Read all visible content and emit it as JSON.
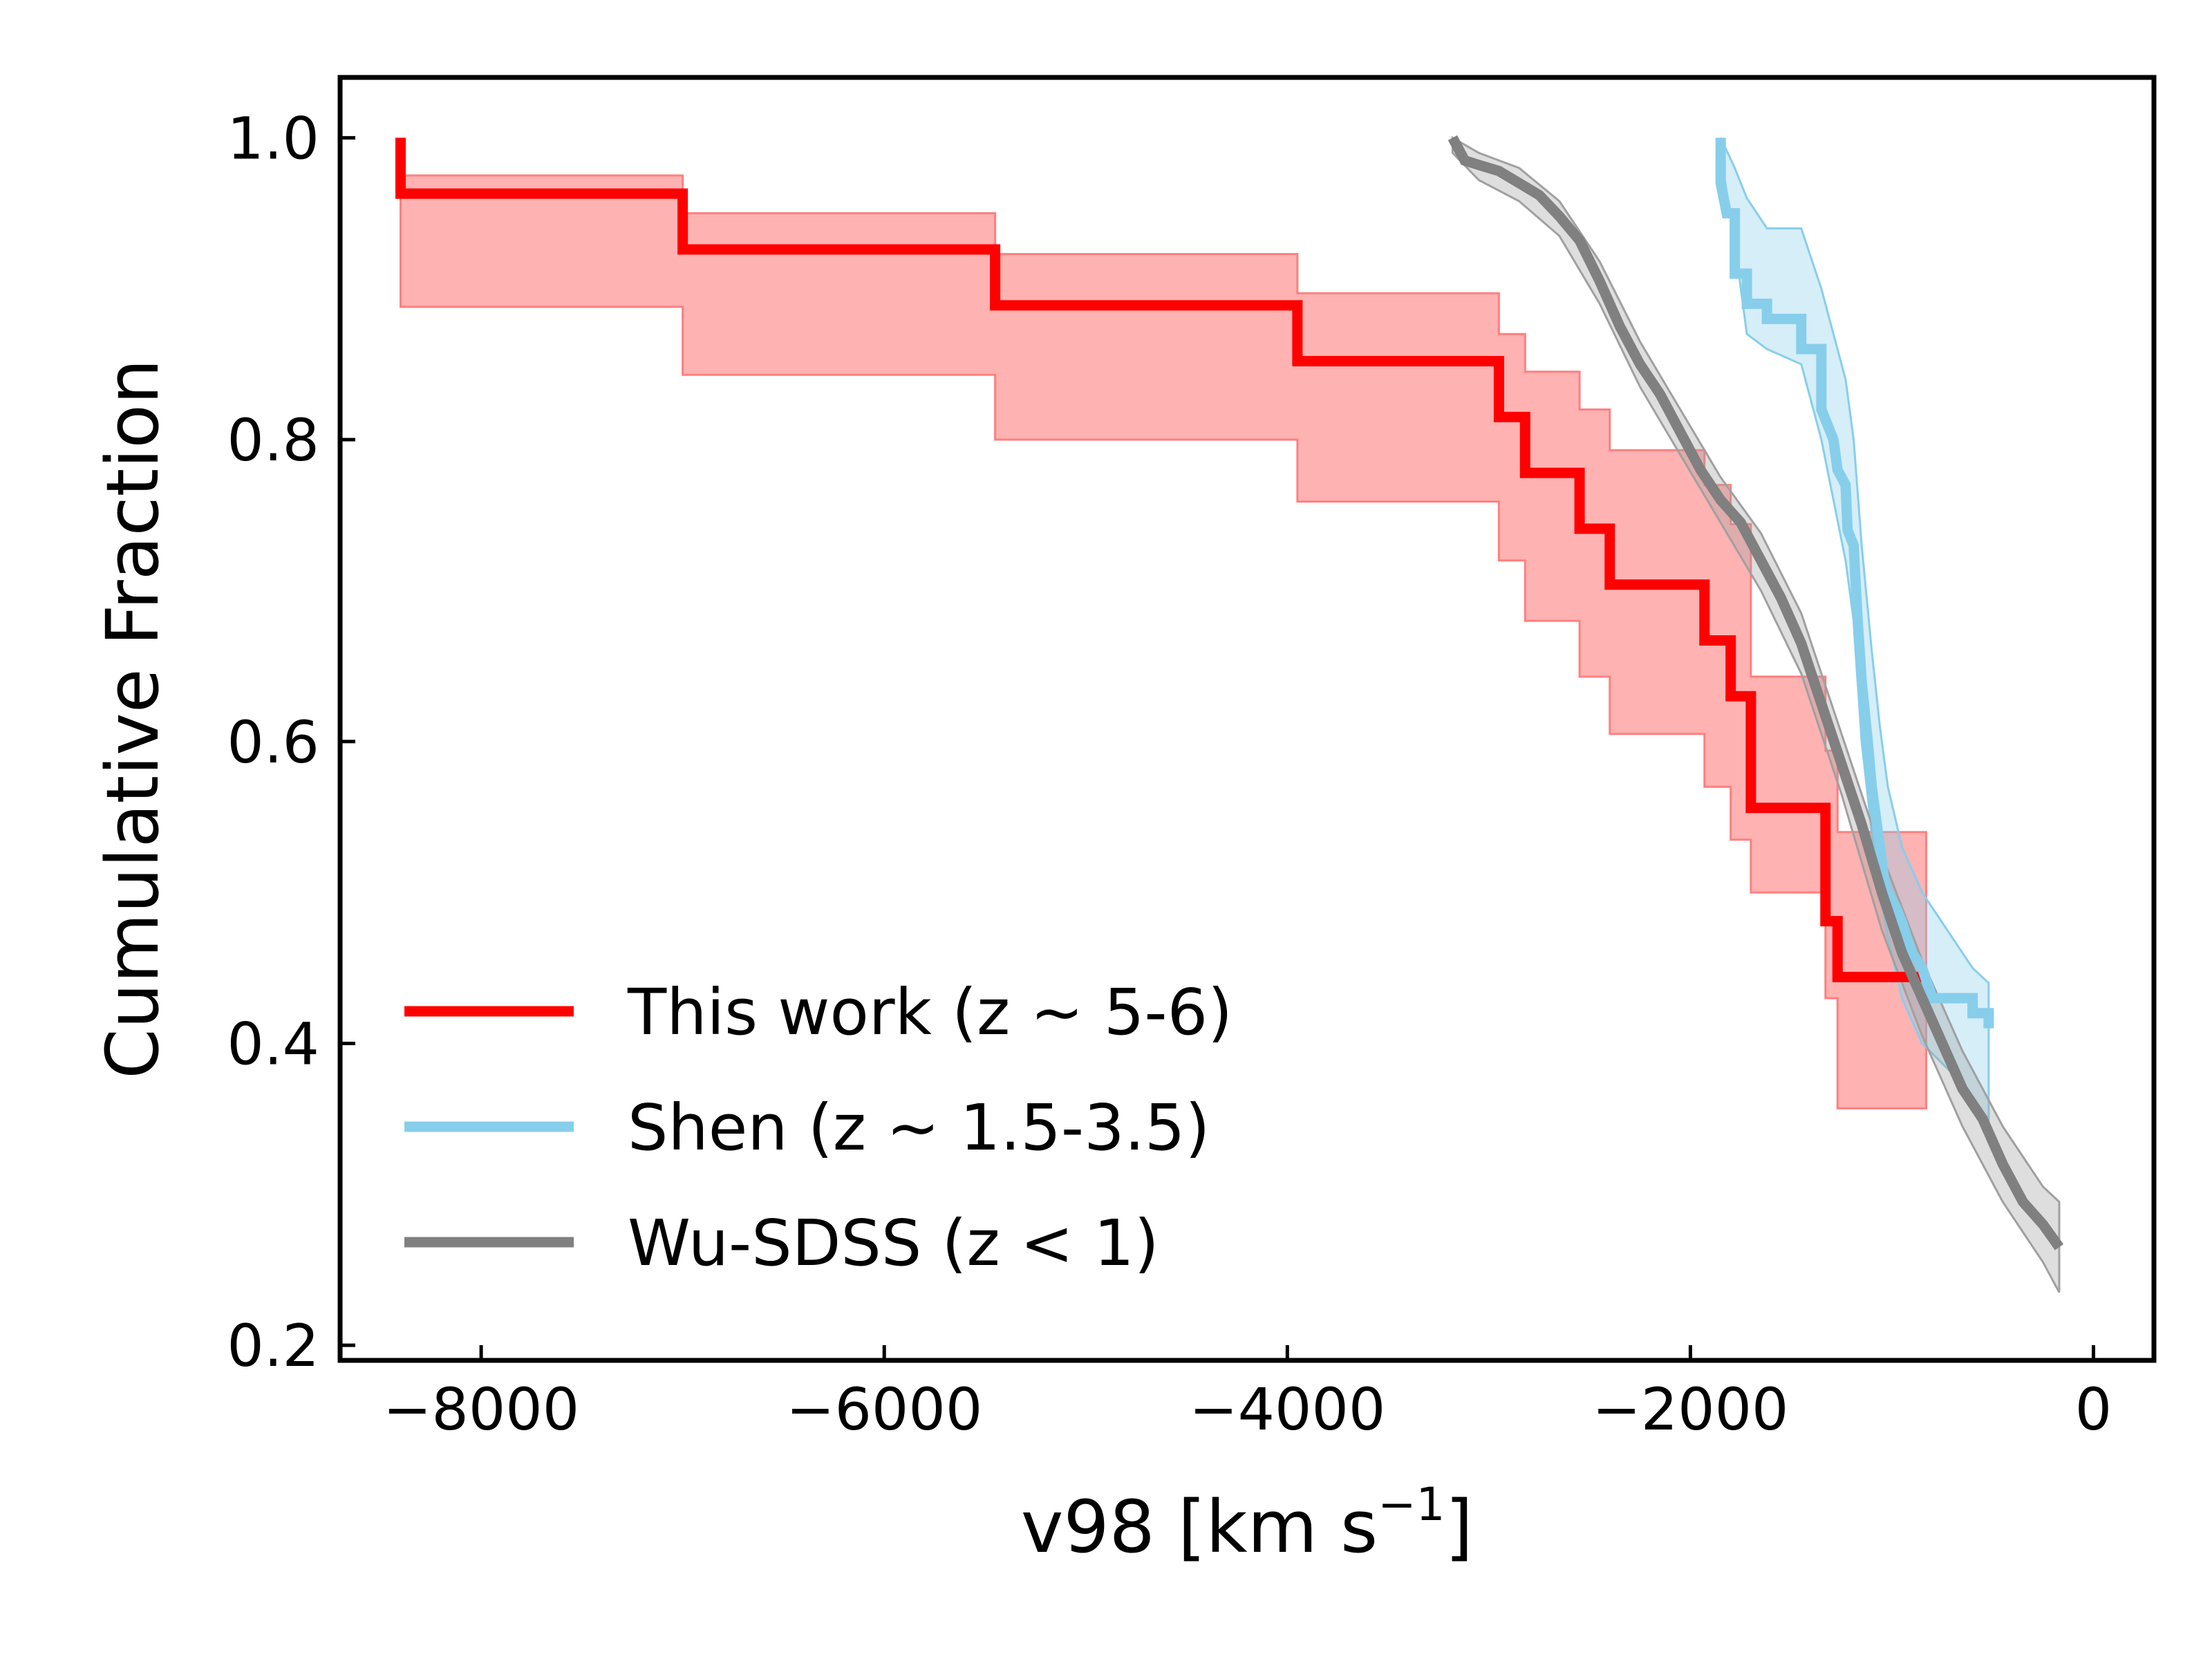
{
  "chart_data": {
    "type": "line",
    "xlabel": "v98 [km s",
    "xlabel_sup": "−1",
    "xlabel_end": "]",
    "ylabel": "Cumulative Fraction",
    "xlim": [
      -8700,
      300
    ],
    "ylim": [
      0.19,
      1.04
    ],
    "x_ticks": [
      -8000,
      -6000,
      -4000,
      -2000,
      0
    ],
    "x_tick_labels": [
      "−8000",
      "−6000",
      "−4000",
      "−2000",
      "0"
    ],
    "y_ticks": [
      0.2,
      0.4,
      0.6,
      0.8,
      1.0
    ],
    "y_tick_labels": [
      "0.2",
      "0.4",
      "0.6",
      "0.8",
      "1.0"
    ],
    "grid": false,
    "legend_position": "lower-left",
    "series": [
      {
        "name": "This work (z ∼ 5-6)",
        "color": "#ff0000",
        "band_color": "#ff7f7f",
        "x": [
          -8400,
          -8400,
          -7000,
          -7000,
          -5450,
          -5450,
          -3950,
          -3950,
          -2950,
          -2950,
          -2820,
          -2820,
          -2550,
          -2550,
          -2400,
          -2400,
          -1930,
          -1930,
          -1800,
          -1800,
          -1700,
          -1700,
          -1330,
          -1330,
          -1270,
          -1270,
          -830
        ],
        "y": [
          1.0,
          0.963,
          0.963,
          0.926,
          0.926,
          0.889,
          0.889,
          0.852,
          0.852,
          0.815,
          0.815,
          0.778,
          0.778,
          0.741,
          0.741,
          0.704,
          0.704,
          0.667,
          0.667,
          0.63,
          0.63,
          0.556,
          0.556,
          0.481,
          0.481,
          0.444,
          0.444
        ],
        "band_x": [
          -8400,
          -7000,
          -7000,
          -5450,
          -5450,
          -3950,
          -3950,
          -2950,
          -2950,
          -2820,
          -2820,
          -2550,
          -2550,
          -2400,
          -2400,
          -1930,
          -1930,
          -1800,
          -1800,
          -1700,
          -1700,
          -1330,
          -1330,
          -1270,
          -1270,
          -830
        ],
        "band_upper": [
          0.975,
          0.975,
          0.95,
          0.95,
          0.923,
          0.923,
          0.897,
          0.897,
          0.87,
          0.87,
          0.845,
          0.845,
          0.82,
          0.82,
          0.793,
          0.793,
          0.77,
          0.77,
          0.744,
          0.744,
          0.643,
          0.643,
          0.594,
          0.594,
          0.54,
          0.54
        ],
        "band_lower": [
          0.888,
          0.888,
          0.843,
          0.843,
          0.8,
          0.8,
          0.759,
          0.759,
          0.72,
          0.72,
          0.68,
          0.68,
          0.643,
          0.643,
          0.605,
          0.605,
          0.57,
          0.57,
          0.535,
          0.535,
          0.5,
          0.5,
          0.43,
          0.43,
          0.357,
          0.357
        ]
      },
      {
        "name": "Shen (z ∼ 1.5-3.5)",
        "color": "#87ceeb",
        "band_color": "#87ceeb",
        "x": [
          -1850,
          -1850,
          -1820,
          -1780,
          -1780,
          -1720,
          -1720,
          -1620,
          -1620,
          -1450,
          -1450,
          -1350,
          -1350,
          -1290,
          -1270,
          -1230,
          -1220,
          -1190,
          -1170,
          -1150,
          -1120,
          -1100,
          -1080,
          -1060,
          -1040,
          -1020,
          -980,
          -950,
          -900,
          -850,
          -800,
          -700,
          -600,
          -600,
          -520,
          -520
        ],
        "y": [
          1.0,
          0.97,
          0.95,
          0.95,
          0.91,
          0.91,
          0.89,
          0.89,
          0.88,
          0.88,
          0.86,
          0.86,
          0.82,
          0.8,
          0.78,
          0.77,
          0.74,
          0.73,
          0.68,
          0.64,
          0.6,
          0.57,
          0.55,
          0.53,
          0.51,
          0.5,
          0.49,
          0.48,
          0.46,
          0.45,
          0.43,
          0.43,
          0.43,
          0.42,
          0.42,
          0.41
        ],
        "band_x": [
          -1850,
          -1780,
          -1720,
          -1620,
          -1450,
          -1350,
          -1290,
          -1230,
          -1190,
          -1150,
          -1100,
          -1060,
          -1020,
          -950,
          -850,
          -700,
          -600,
          -520
        ],
        "band_upper": [
          1.0,
          0.98,
          0.96,
          0.94,
          0.94,
          0.9,
          0.87,
          0.84,
          0.8,
          0.73,
          0.66,
          0.61,
          0.57,
          0.53,
          0.5,
          0.47,
          0.45,
          0.44
        ],
        "band_lower": [
          0.99,
          0.93,
          0.87,
          0.86,
          0.85,
          0.8,
          0.76,
          0.72,
          0.68,
          0.6,
          0.54,
          0.5,
          0.47,
          0.43,
          0.4,
          0.38,
          0.36,
          0.35
        ]
      },
      {
        "name": "Wu-SDSS (z < 1)",
        "color": "#808080",
        "band_color": "#a0a0a0",
        "x": [
          -3180,
          -3120,
          -3050,
          -2950,
          -2850,
          -2750,
          -2650,
          -2550,
          -2450,
          -2350,
          -2250,
          -2150,
          -2050,
          -1950,
          -1850,
          -1750,
          -1650,
          -1550,
          -1450,
          -1350,
          -1250,
          -1150,
          -1050,
          -950,
          -850,
          -750,
          -650,
          -550,
          -450,
          -350,
          -250,
          -170
        ],
        "y": [
          1.0,
          0.985,
          0.982,
          0.978,
          0.97,
          0.962,
          0.948,
          0.932,
          0.905,
          0.875,
          0.85,
          0.83,
          0.805,
          0.78,
          0.76,
          0.745,
          0.72,
          0.695,
          0.665,
          0.625,
          0.585,
          0.545,
          0.5,
          0.46,
          0.43,
          0.4,
          0.37,
          0.35,
          0.32,
          0.295,
          0.28,
          0.265
        ],
        "band_x": [
          -3180,
          -3050,
          -2850,
          -2650,
          -2450,
          -2250,
          -2050,
          -1850,
          -1650,
          -1450,
          -1250,
          -1050,
          -850,
          -650,
          -450,
          -250,
          -170
        ],
        "band_upper": [
          1.0,
          0.99,
          0.98,
          0.958,
          0.918,
          0.865,
          0.82,
          0.775,
          0.738,
          0.685,
          0.605,
          0.525,
          0.455,
          0.395,
          0.345,
          0.305,
          0.295
        ],
        "band_lower": [
          0.99,
          0.972,
          0.958,
          0.935,
          0.89,
          0.835,
          0.79,
          0.745,
          0.7,
          0.645,
          0.565,
          0.475,
          0.405,
          0.345,
          0.295,
          0.255,
          0.235
        ]
      }
    ]
  }
}
